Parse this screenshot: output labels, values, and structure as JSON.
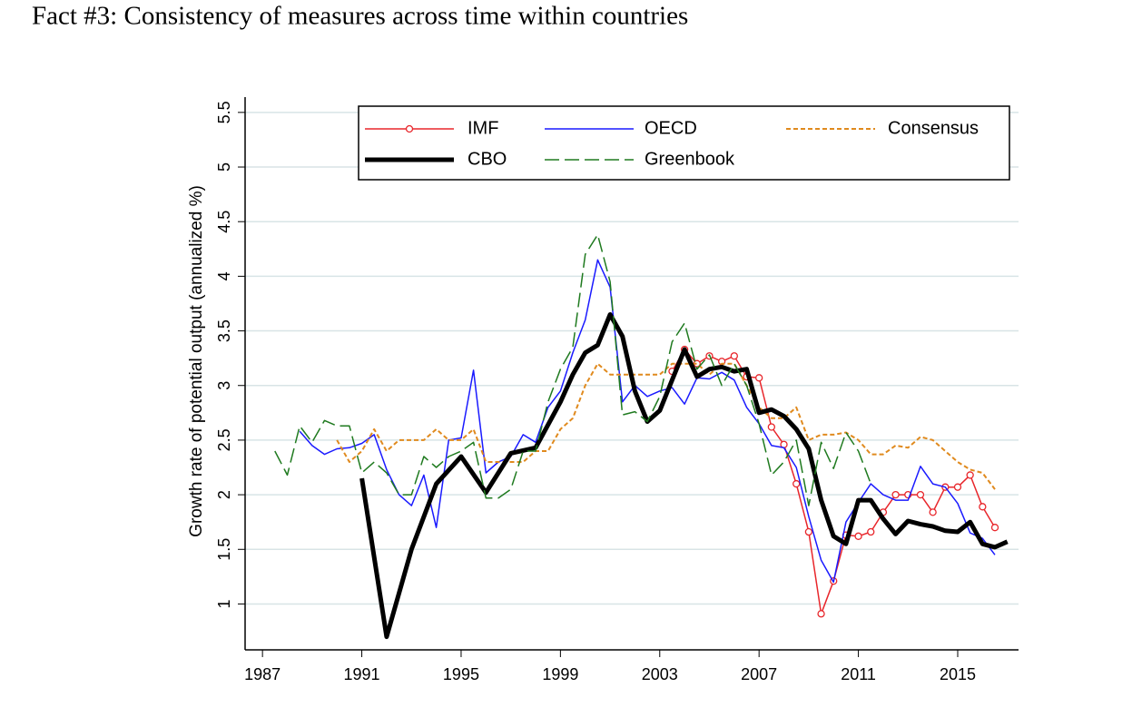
{
  "chart_data": {
    "type": "line",
    "title": "Fact #3: Consistency of measures across time within countries",
    "y_label": "Growth rate of potential output (annualized %)",
    "xlim": [
      1986.3,
      2017.45
    ],
    "ylim": [
      0.58,
      5.64
    ],
    "xticks": [
      1987,
      1991,
      1995,
      1999,
      2003,
      2007,
      2011,
      2015
    ],
    "yticks": [
      1,
      1.5,
      2,
      2.5,
      3,
      3.5,
      4,
      4.5,
      5,
      5.5
    ],
    "grid": true,
    "legend": "top",
    "series": [
      {
        "name": "IMF",
        "color": "#e8262b",
        "line_style": "solid",
        "marker": "circle",
        "linewidth": 1.5,
        "x": [
          2003.5,
          2004,
          2004.5,
          2005,
          2005.5,
          2006,
          2006.5,
          2007,
          2007.5,
          2008,
          2008.5,
          2009,
          2009.5,
          2010,
          2010.5,
          2011,
          2011.5,
          2012,
          2012.5,
          2013,
          2013.5,
          2014,
          2014.5,
          2015,
          2015.5,
          2016,
          2016.5
        ],
        "values": [
          3.13,
          3.33,
          3.2,
          3.27,
          3.22,
          3.27,
          3.08,
          3.07,
          2.62,
          2.46,
          2.1,
          1.66,
          0.91,
          1.21,
          1.63,
          1.62,
          1.66,
          1.84,
          2.0,
          2.0,
          2.0,
          1.84,
          2.07,
          2.07,
          2.18,
          1.89,
          1.7
        ]
      },
      {
        "name": "OECD",
        "color": "#1a1aff",
        "line_style": "solid",
        "linewidth": 1.5,
        "x": [
          1988.5,
          1989,
          1989.5,
          1990,
          1990.5,
          1991,
          1991.5,
          1992,
          1992.5,
          1993,
          1993.5,
          1994,
          1994.5,
          1995,
          1995.5,
          1996,
          1996.5,
          1997,
          1997.5,
          1998,
          1998.5,
          1999,
          1999.5,
          2000,
          2000.5,
          2001,
          2001.5,
          2002,
          2002.5,
          2003,
          2003.5,
          2004,
          2004.5,
          2005,
          2005.5,
          2006,
          2006.5,
          2007,
          2007.5,
          2008,
          2008.5,
          2009,
          2009.5,
          2010,
          2010.5,
          2011,
          2011.5,
          2012,
          2012.5,
          2013,
          2013.5,
          2014,
          2014.5,
          2015,
          2015.5,
          2016,
          2016.5
        ],
        "values": [
          2.58,
          2.45,
          2.37,
          2.42,
          2.43,
          2.47,
          2.55,
          2.23,
          2.0,
          1.9,
          2.18,
          1.7,
          2.5,
          2.52,
          3.14,
          2.2,
          2.3,
          2.35,
          2.55,
          2.48,
          2.8,
          2.95,
          3.3,
          3.6,
          4.15,
          3.9,
          2.85,
          3.0,
          2.9,
          2.95,
          2.98,
          2.83,
          3.07,
          3.06,
          3.12,
          3.05,
          2.8,
          2.65,
          2.45,
          2.43,
          2.25,
          1.8,
          1.4,
          1.2,
          1.75,
          1.93,
          2.1,
          2.0,
          1.95,
          1.95,
          2.26,
          2.1,
          2.07,
          1.92,
          1.65,
          1.6,
          1.45
        ]
      },
      {
        "name": "Consensus",
        "color": "#e08a1e",
        "line_style": "dotted",
        "linewidth": 2,
        "x": [
          1990,
          1990.5,
          1991,
          1991.5,
          1992,
          1992.5,
          1993,
          1993.5,
          1994,
          1994.5,
          1995,
          1995.5,
          1996,
          1996.5,
          1997,
          1997.5,
          1998,
          1998.5,
          1999,
          1999.5,
          2000,
          2000.5,
          2001,
          2001.5,
          2002,
          2002.5,
          2003,
          2003.5,
          2004,
          2004.5,
          2005,
          2005.5,
          2006,
          2006.5,
          2007,
          2007.5,
          2008,
          2008.5,
          2009,
          2009.5,
          2010,
          2010.5,
          2011,
          2011.5,
          2012,
          2012.5,
          2013,
          2013.5,
          2014,
          2014.5,
          2015,
          2015.5,
          2016,
          2016.5
        ],
        "values": [
          2.5,
          2.3,
          2.4,
          2.6,
          2.4,
          2.5,
          2.5,
          2.5,
          2.6,
          2.5,
          2.5,
          2.6,
          2.3,
          2.3,
          2.3,
          2.3,
          2.4,
          2.4,
          2.6,
          2.7,
          3.0,
          3.2,
          3.1,
          3.1,
          3.1,
          3.1,
          3.1,
          3.2,
          3.2,
          3.2,
          3.1,
          3.2,
          3.2,
          3.0,
          2.8,
          2.7,
          2.7,
          2.8,
          2.5,
          2.55,
          2.55,
          2.57,
          2.5,
          2.37,
          2.37,
          2.45,
          2.43,
          2.53,
          2.5,
          2.4,
          2.3,
          2.23,
          2.2,
          2.05
        ]
      },
      {
        "name": "CBO",
        "color": "#000000",
        "line_style": "solid",
        "linewidth": 5,
        "x": [
          1991,
          1992,
          1993,
          1994,
          1995,
          1996,
          1996.5,
          1997,
          1998,
          1999,
          1999.5,
          2000,
          2000.5,
          2001,
          2001.5,
          2002,
          2002.5,
          2003,
          2003.5,
          2004,
          2004.5,
          2005,
          2005.5,
          2006,
          2006.5,
          2007,
          2007.5,
          2008,
          2008.5,
          2009,
          2009.5,
          2010,
          2010.5,
          2011,
          2011.5,
          2012,
          2012.5,
          2013,
          2013.5,
          2014,
          2014.5,
          2015,
          2015.5,
          2016,
          2016.5,
          2017
        ],
        "values": [
          2.15,
          0.7,
          1.5,
          2.1,
          2.35,
          2.02,
          2.2,
          2.38,
          2.43,
          2.85,
          3.1,
          3.3,
          3.37,
          3.65,
          3.45,
          2.95,
          2.67,
          2.77,
          3.05,
          3.33,
          3.08,
          3.15,
          3.17,
          3.13,
          3.15,
          2.75,
          2.78,
          2.72,
          2.6,
          2.42,
          1.95,
          1.62,
          1.55,
          1.95,
          1.95,
          1.78,
          1.64,
          1.76,
          1.73,
          1.71,
          1.67,
          1.66,
          1.75,
          1.55,
          1.52,
          1.57
        ]
      },
      {
        "name": "Greenbook",
        "color": "#1f7a1f",
        "line_style": "longdash",
        "linewidth": 1.5,
        "x": [
          1987.5,
          1988,
          1988.5,
          1989,
          1989.5,
          1990,
          1990.5,
          1991,
          1991.5,
          1992,
          1992.5,
          1993,
          1993.5,
          1994,
          1994.5,
          1995,
          1995.5,
          1996,
          1996.5,
          1997,
          1997.5,
          1998,
          1998.5,
          1999,
          1999.5,
          2000,
          2000.5,
          2001,
          2001.5,
          2002,
          2002.5,
          2003,
          2003.5,
          2004,
          2004.5,
          2005,
          2005.5,
          2006,
          2006.5,
          2007,
          2007.5,
          2008,
          2008.5,
          2009,
          2009.5,
          2010,
          2010.5,
          2011,
          2011.5
        ],
        "values": [
          2.4,
          2.18,
          2.63,
          2.48,
          2.68,
          2.63,
          2.63,
          2.2,
          2.3,
          2.2,
          2.0,
          2.0,
          2.35,
          2.25,
          2.35,
          2.4,
          2.48,
          1.97,
          1.97,
          2.05,
          2.4,
          2.4,
          2.85,
          3.15,
          3.35,
          4.2,
          4.38,
          3.95,
          2.73,
          2.76,
          2.67,
          2.9,
          3.4,
          3.57,
          3.15,
          3.28,
          3.0,
          3.2,
          3.0,
          2.65,
          2.18,
          2.3,
          2.5,
          1.9,
          2.48,
          2.24,
          2.57,
          2.4,
          2.1
        ]
      }
    ]
  }
}
